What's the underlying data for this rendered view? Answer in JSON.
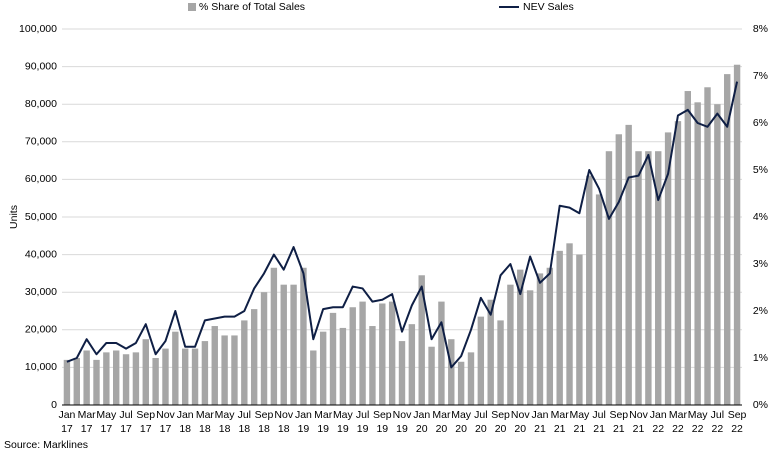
{
  "chart_data": {
    "type": "bar-line",
    "y_label": "Units",
    "source": "Source: Marklines",
    "categories": [
      "Jan 17",
      null,
      "Mar 17",
      null,
      "May 17",
      null,
      "Jul 17",
      null,
      "Sep 17",
      null,
      "Nov 17",
      null,
      "Jan 18",
      null,
      "Mar 18",
      null,
      "May 18",
      null,
      "Jul 18",
      null,
      "Sep 18",
      null,
      "Nov 18",
      null,
      "Jan 19",
      null,
      "Mar 19",
      null,
      "May 19",
      null,
      "Jul 19",
      null,
      "Sep 19",
      null,
      "Nov 19",
      null,
      "Jan 20",
      null,
      "Mar 20",
      null,
      "May 20",
      null,
      "Jul 20",
      null,
      "Sep 20",
      null,
      "Nov 20",
      null,
      "Jan 21",
      null,
      "Mar 21",
      null,
      "May 21",
      null,
      "Jul 21",
      null,
      "Sep 21",
      null,
      "Nov 21",
      null,
      "Jan 22",
      null,
      "Mar 22",
      null,
      "May 22",
      null,
      "Jul 22",
      null,
      "Sep 22"
    ],
    "series": [
      {
        "name": "% Share of Total Sales",
        "kind": "bar",
        "axis": "y2",
        "color": "#a6a6a6",
        "values": [
          0.96,
          1.0,
          1.16,
          0.96,
          1.12,
          1.16,
          1.08,
          1.12,
          1.4,
          1.0,
          1.2,
          1.56,
          1.2,
          1.2,
          1.36,
          1.68,
          1.48,
          1.48,
          1.8,
          2.04,
          2.4,
          2.92,
          2.56,
          2.56,
          2.92,
          1.16,
          1.56,
          1.96,
          1.64,
          2.08,
          2.2,
          1.68,
          2.16,
          2.2,
          1.36,
          1.72,
          2.76,
          1.24,
          2.2,
          1.4,
          0.92,
          1.12,
          1.88,
          2.24,
          1.8,
          2.56,
          2.88,
          2.44,
          2.8,
          2.92,
          3.28,
          3.44,
          3.2,
          4.88,
          4.48,
          5.4,
          5.76,
          5.96,
          5.4,
          5.4,
          5.4,
          5.8,
          6.04,
          6.68,
          6.44,
          6.76,
          6.4,
          7.04,
          7.24
        ]
      },
      {
        "name": "NEV Sales",
        "kind": "line",
        "color": "#0f1f45",
        "values": [
          11500,
          12500,
          17500,
          13500,
          16500,
          16500,
          15000,
          16500,
          21500,
          13500,
          17000,
          25000,
          15500,
          15500,
          22500,
          23000,
          23500,
          23500,
          25000,
          31000,
          35000,
          40000,
          36000,
          42000,
          35000,
          17500,
          25500,
          26000,
          26000,
          31500,
          31000,
          27500,
          28000,
          29500,
          19500,
          26500,
          31500,
          17500,
          22000,
          10000,
          13000,
          20000,
          28500,
          24000,
          34500,
          37500,
          29500,
          39500,
          32500,
          35000,
          53000,
          52500,
          51000,
          62500,
          57500,
          49500,
          54000,
          60500,
          61000,
          66500,
          54500,
          61500,
          77000,
          78500,
          75000,
          74000,
          77500,
          74000,
          86000
        ]
      }
    ],
    "ylim": [
      0,
      100000
    ],
    "yticks": [
      0,
      {
        "value": 10000,
        "label": "10,000"
      },
      {
        "value": 20000,
        "label": "20,000"
      },
      {
        "value": 30000,
        "label": "30,000"
      },
      {
        "value": 40000,
        "label": "40,000"
      },
      {
        "value": 50000,
        "label": "50,000"
      },
      {
        "value": 60000,
        "label": "60,000"
      },
      {
        "value": 70000,
        "label": "70,000"
      },
      {
        "value": 80000,
        "label": "80,000"
      },
      {
        "value": 90000,
        "label": "90,000"
      },
      {
        "value": 100000,
        "label": "100,000"
      }
    ],
    "y2lim": [
      0,
      8
    ],
    "y2ticks": [
      {
        "value": 0,
        "label": "0%"
      },
      {
        "value": 1,
        "label": "1%"
      },
      {
        "value": 2,
        "label": "2%"
      },
      {
        "value": 3,
        "label": "3%"
      },
      {
        "value": 4,
        "label": "4%"
      },
      {
        "value": 5,
        "label": "5%"
      },
      {
        "value": 6,
        "label": "6%"
      },
      {
        "value": 7,
        "label": "7%"
      },
      {
        "value": 8,
        "label": "8%"
      }
    ],
    "grid": true,
    "legend": "top"
  }
}
